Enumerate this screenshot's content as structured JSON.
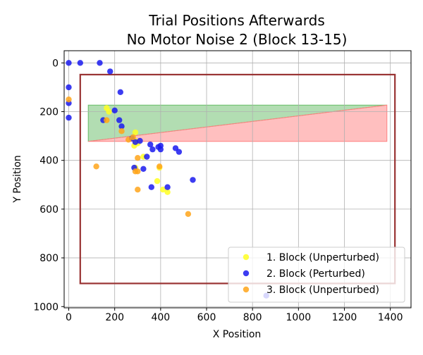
{
  "chart_data": {
    "type": "scatter",
    "title": [
      "Trial Positions Afterwards",
      "No Motor Noise 2 (Block 13-15)"
    ],
    "xlabel": "X Position",
    "ylabel": "Y Position",
    "xlim": [
      -20,
      1490
    ],
    "ylim": [
      1005,
      -50
    ],
    "y_inverted": true,
    "xticks": [
      0,
      200,
      400,
      600,
      800,
      1000,
      1200,
      1400
    ],
    "yticks": [
      0,
      200,
      400,
      600,
      800,
      1000
    ],
    "grid": true,
    "legend_position": "lower-right",
    "boundary": {
      "color": "#993333",
      "x": [
        50,
        1420
      ],
      "y": [
        48,
        905
      ]
    },
    "regions": [
      {
        "name": "green-region",
        "color": "#66bb66",
        "points": [
          [
            85,
            173
          ],
          [
            1385,
            173
          ],
          [
            85,
            322
          ]
        ]
      },
      {
        "name": "red-region",
        "color": "#ff8080",
        "points": [
          [
            85,
            322
          ],
          [
            1385,
            173
          ],
          [
            1385,
            322
          ]
        ]
      }
    ],
    "series": [
      {
        "name": "1. Block (Unperturbed)",
        "color": "#ffff22",
        "points": [
          [
            165,
            185
          ],
          [
            175,
            200
          ],
          [
            290,
            285
          ],
          [
            290,
            320
          ],
          [
            285,
            340
          ],
          [
            300,
            330
          ],
          [
            325,
            385
          ],
          [
            290,
            430
          ],
          [
            395,
            430
          ],
          [
            385,
            485
          ],
          [
            410,
            520
          ],
          [
            430,
            530
          ],
          [
            160,
            235
          ]
        ]
      },
      {
        "name": "2. Block (Perturbed)",
        "color": "#1a1aee",
        "points": [
          [
            0,
            0
          ],
          [
            50,
            0
          ],
          [
            135,
            0
          ],
          [
            180,
            35
          ],
          [
            225,
            120
          ],
          [
            0,
            100
          ],
          [
            0,
            165
          ],
          [
            0,
            225
          ],
          [
            200,
            195
          ],
          [
            220,
            235
          ],
          [
            230,
            260
          ],
          [
            150,
            235
          ],
          [
            275,
            310
          ],
          [
            290,
            325
          ],
          [
            310,
            320
          ],
          [
            340,
            385
          ],
          [
            355,
            335
          ],
          [
            365,
            355
          ],
          [
            390,
            345
          ],
          [
            400,
            340
          ],
          [
            400,
            355
          ],
          [
            465,
            350
          ],
          [
            480,
            365
          ],
          [
            285,
            430
          ],
          [
            325,
            435
          ],
          [
            360,
            510
          ],
          [
            430,
            510
          ],
          [
            540,
            480
          ],
          [
            860,
            955
          ]
        ]
      },
      {
        "name": "3. Block (Unperturbed)",
        "color": "#ffa51a",
        "points": [
          [
            0,
            150
          ],
          [
            165,
            235
          ],
          [
            230,
            280
          ],
          [
            260,
            315
          ],
          [
            280,
            305
          ],
          [
            300,
            390
          ],
          [
            120,
            425
          ],
          [
            290,
            445
          ],
          [
            300,
            445
          ],
          [
            395,
            425
          ],
          [
            300,
            520
          ],
          [
            520,
            620
          ]
        ]
      }
    ]
  }
}
